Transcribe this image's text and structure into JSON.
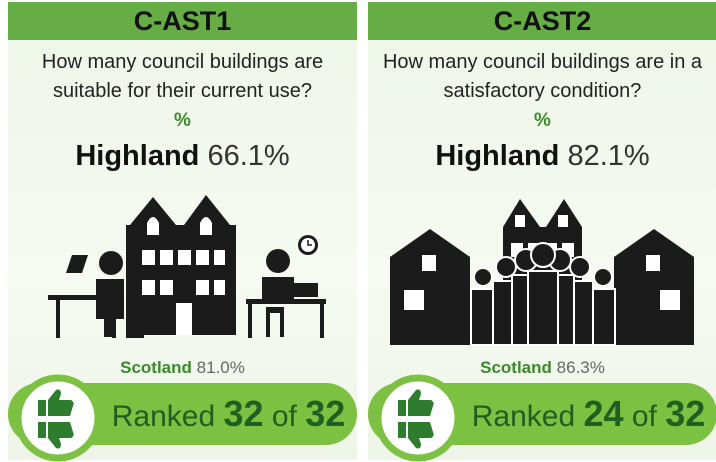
{
  "cards": [
    {
      "code": "C-AST1",
      "question": "How many council buildings are suitable for their current use?",
      "unit": "%",
      "area": "Highland",
      "area_value": "66.1%",
      "comparison": "Scotland",
      "comparison_value": "81.0%",
      "rank_label": "Ranked",
      "rank": "32",
      "rank_of": "of",
      "rank_total": "32"
    },
    {
      "code": "C-AST2",
      "question": "How many council buildings are in a satisfactory condition?",
      "unit": "%",
      "area": "Highland",
      "area_value": "82.1%",
      "comparison": "Scotland",
      "comparison_value": "86.3%",
      "rank_label": "Ranked",
      "rank": "24",
      "rank_of": "of",
      "rank_total": "32"
    }
  ]
}
